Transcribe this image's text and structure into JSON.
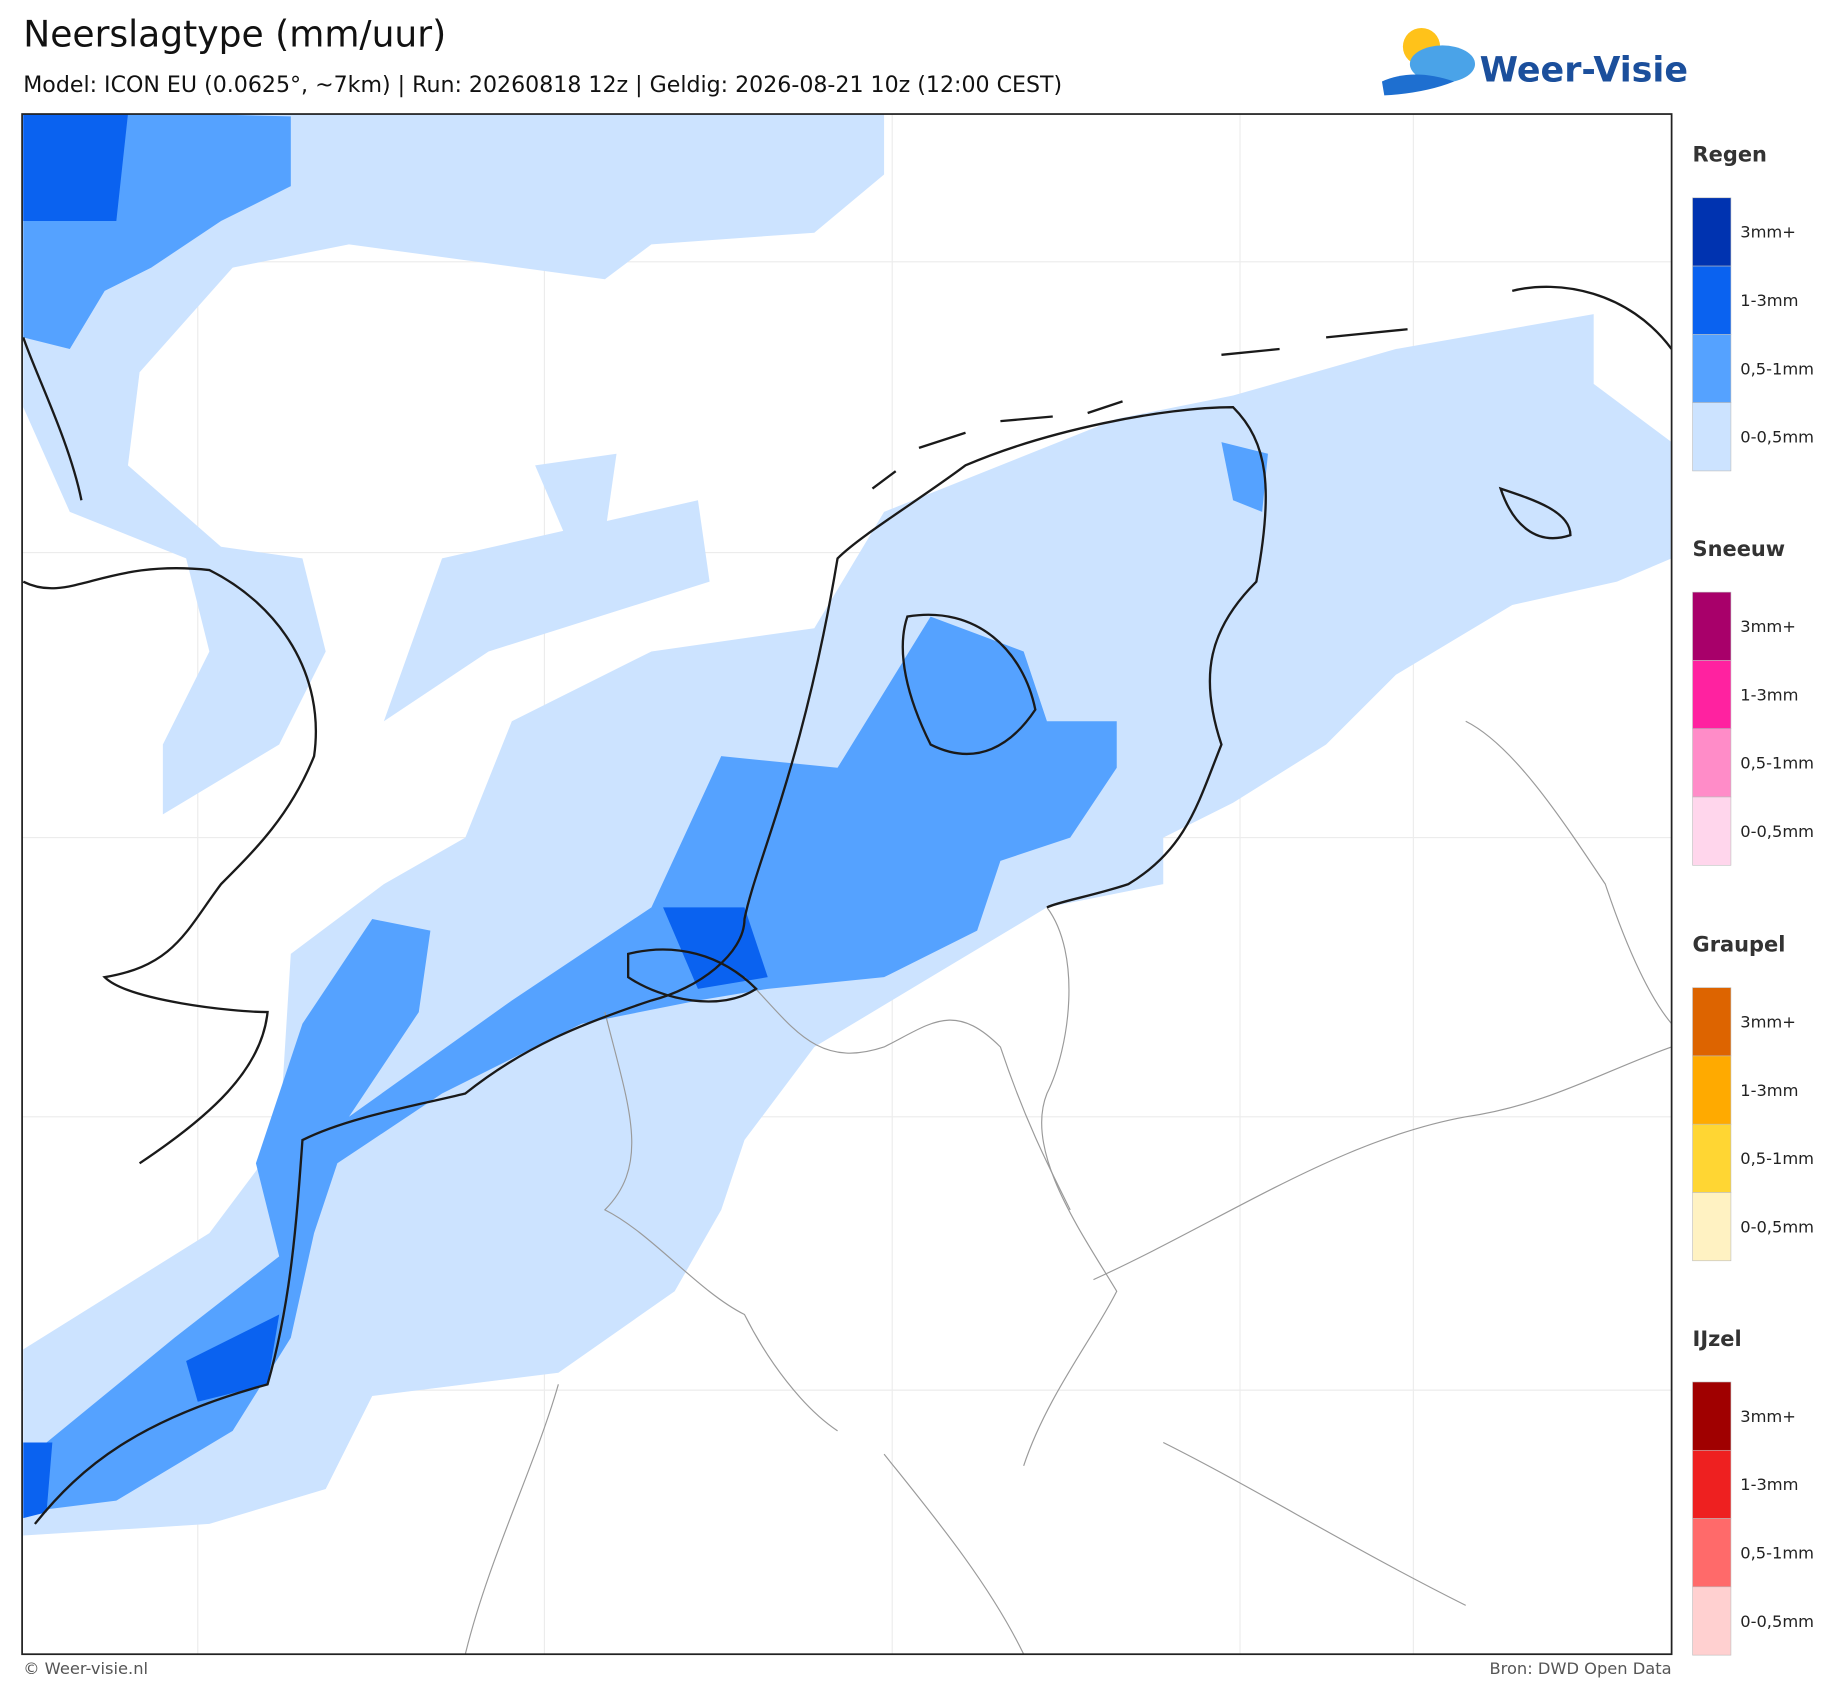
{
  "header": {
    "title": "Neerslagtype (mm/uur)",
    "subtitle": "Model: ICON EU (0.0625°, ~7km)  |  Run: 20260818 12z  |  Geldig: 2026-08-21 10z (12:00 CEST)",
    "logo": "Weer-Visie"
  },
  "legend": [
    {
      "name": "Regen",
      "items": [
        {
          "label": "3mm+",
          "color": "#0033b0"
        },
        {
          "label": "1-3mm",
          "color": "#0a62f0"
        },
        {
          "label": "0,5-1mm",
          "color": "#55a2ff"
        },
        {
          "label": "0-0,5mm",
          "color": "#cce3ff"
        }
      ]
    },
    {
      "name": "Sneeuw",
      "items": [
        {
          "label": "3mm+",
          "color": "#a8006a"
        },
        {
          "label": "1-3mm",
          "color": "#ff22a0"
        },
        {
          "label": "0,5-1mm",
          "color": "#ff8cc8"
        },
        {
          "label": "0-0,5mm",
          "color": "#ffd6ec"
        }
      ]
    },
    {
      "name": "Graupel",
      "items": [
        {
          "label": "3mm+",
          "color": "#dd6400"
        },
        {
          "label": "1-3mm",
          "color": "#ffaa00"
        },
        {
          "label": "0,5-1mm",
          "color": "#ffd633"
        },
        {
          "label": "0-0,5mm",
          "color": "#fff2c2"
        }
      ]
    },
    {
      "name": "IJzel",
      "items": [
        {
          "label": "3mm+",
          "color": "#a00000"
        },
        {
          "label": "1-3mm",
          "color": "#ee2020"
        },
        {
          "label": "0,5-1mm",
          "color": "#ff6a6a"
        },
        {
          "label": "0-0,5mm",
          "color": "#ffd0d0"
        }
      ]
    }
  ],
  "footer": {
    "left": "© Weer-visie.nl",
    "right": "Bron: DWD Open Data"
  }
}
